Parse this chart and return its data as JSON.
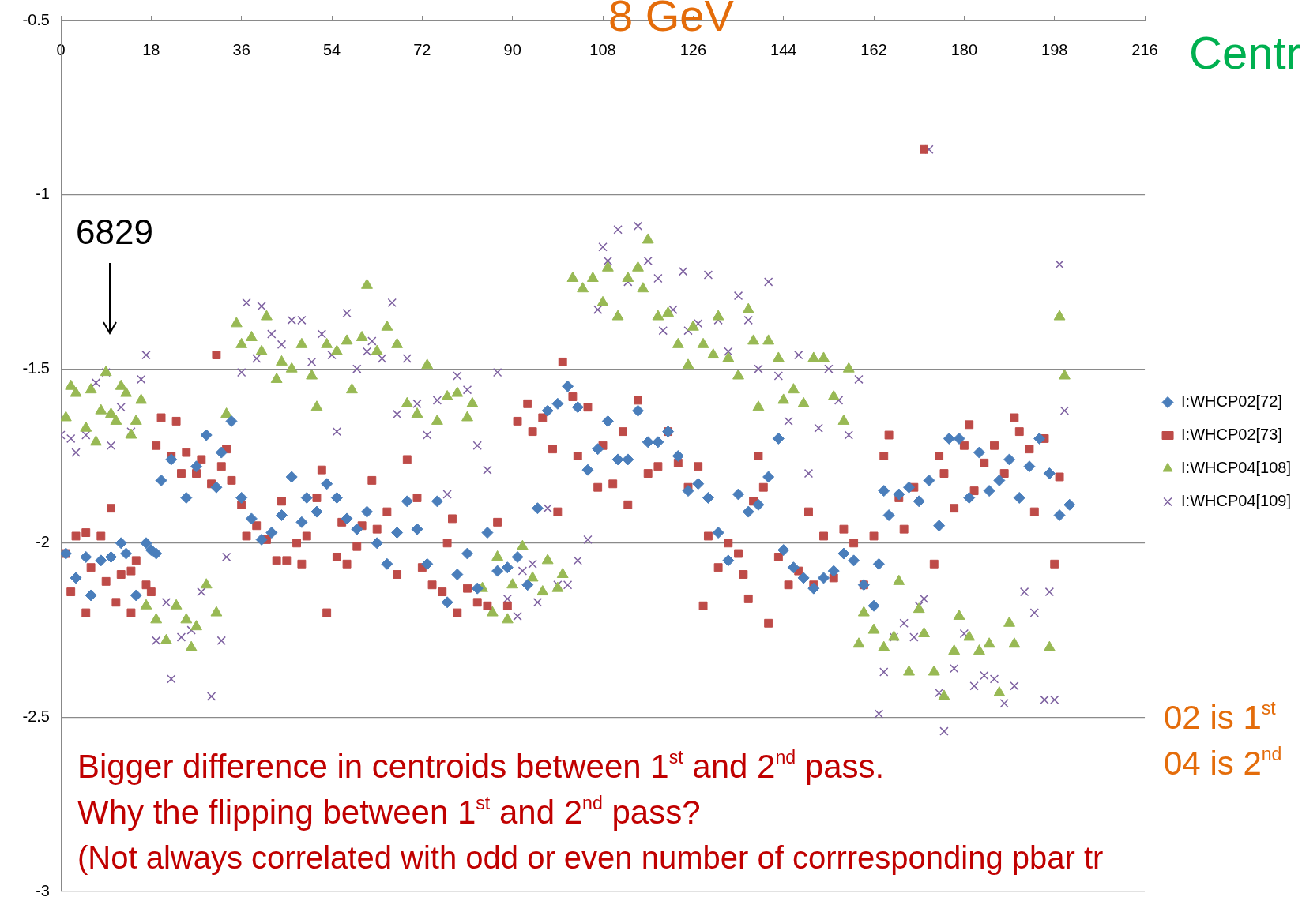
{
  "chart_data": {
    "type": "scatter",
    "title": "8 GeV",
    "annotations": [
      "Centr",
      "6829",
      "Bigger difference in centroids between 1$^{st}$ and 2$^{nd}$ pass.",
      "Why the flipping between 1$^{st}$ and 2$^{nd}$ pass?",
      "(Not always correlated with odd or even number of corrresponding pbar tr",
      "02 is 1$^{st}$",
      "04 is 2$^{nd}$"
    ],
    "xlim": [
      0,
      216
    ],
    "xticks": [
      0,
      18,
      36,
      54,
      72,
      90,
      108,
      126,
      144,
      162,
      180,
      198,
      216
    ],
    "ylim": [
      -3,
      -0.5
    ],
    "yticks": [
      -3,
      -2.5,
      -2,
      -1.5,
      -1,
      -0.5
    ],
    "grid": "y",
    "legend": "right",
    "series": [
      {
        "name": "I:WHCP02[72]",
        "color": "#4a7ebb",
        "marker": "diamond",
        "x": [
          1,
          3,
          5,
          6,
          8,
          10,
          12,
          13,
          15,
          17,
          18,
          19,
          20,
          22,
          25,
          27,
          29,
          31,
          32,
          34,
          36,
          38,
          40,
          42,
          44,
          46,
          48,
          49,
          51,
          53,
          55,
          57,
          59,
          61,
          63,
          65,
          67,
          69,
          71,
          73,
          75,
          77,
          79,
          81,
          83,
          85,
          87,
          89,
          91,
          93,
          95,
          97,
          99,
          101,
          103,
          105,
          107,
          109,
          111,
          113,
          115,
          117,
          119,
          121,
          123,
          125,
          127,
          129,
          131,
          133,
          135,
          137,
          139,
          141,
          143,
          144,
          146,
          148,
          150,
          152,
          154,
          156,
          158,
          160,
          162,
          163,
          164,
          165,
          167,
          169,
          171,
          173,
          175,
          177,
          179,
          181,
          183,
          185,
          187,
          189,
          191,
          193,
          195,
          197,
          199,
          201
        ],
        "values": [
          -2.03,
          -2.1,
          -2.04,
          -2.15,
          -2.05,
          -2.04,
          -2.0,
          -2.03,
          -2.15,
          -2.0,
          -2.02,
          -2.03,
          -1.82,
          -1.76,
          -1.87,
          -1.78,
          -1.69,
          -1.84,
          -1.74,
          -1.65,
          -1.87,
          -1.93,
          -1.99,
          -1.97,
          -1.92,
          -1.81,
          -1.94,
          -1.87,
          -1.91,
          -1.83,
          -1.87,
          -1.93,
          -1.96,
          -1.91,
          -2.0,
          -2.06,
          -1.97,
          -1.88,
          -1.96,
          -2.06,
          -1.88,
          -2.17,
          -2.09,
          -2.03,
          -2.13,
          -1.97,
          -2.08,
          -2.07,
          -2.04,
          -2.12,
          -1.9,
          -1.62,
          -1.6,
          -1.55,
          -1.61,
          -1.79,
          -1.73,
          -1.65,
          -1.76,
          -1.76,
          -1.62,
          -1.71,
          -1.71,
          -1.68,
          -1.75,
          -1.85,
          -1.83,
          -1.87,
          -1.97,
          -2.05,
          -1.86,
          -1.91,
          -1.89,
          -1.81,
          -1.7,
          -2.02,
          -2.07,
          -2.1,
          -2.13,
          -2.1,
          -2.08,
          -2.03,
          -2.05,
          -2.12,
          -2.18,
          -2.06,
          -1.85,
          -1.92,
          -1.86,
          -1.84,
          -1.88,
          -1.82,
          -1.95,
          -1.7,
          -1.7,
          -1.87,
          -1.74,
          -1.85,
          -1.82,
          -1.76,
          -1.87,
          -1.78,
          -1.7,
          -1.8,
          -1.92,
          -1.89
        ]
      },
      {
        "name": "I:WHCP02[73]",
        "color": "#be4b48",
        "marker": "square",
        "x": [
          1,
          2,
          3,
          5,
          5,
          6,
          8,
          9,
          10,
          11,
          12,
          14,
          14,
          15,
          17,
          18,
          19,
          20,
          22,
          23,
          24,
          25,
          27,
          28,
          30,
          31,
          32,
          33,
          34,
          36,
          37,
          39,
          41,
          43,
          44,
          45,
          47,
          48,
          49,
          51,
          52,
          53,
          55,
          56,
          57,
          59,
          60,
          62,
          63,
          65,
          67,
          69,
          71,
          72,
          74,
          76,
          77,
          78,
          79,
          81,
          83,
          85,
          87,
          89,
          91,
          93,
          94,
          96,
          98,
          99,
          100,
          102,
          103,
          105,
          107,
          108,
          110,
          112,
          113,
          115,
          117,
          119,
          121,
          123,
          125,
          127,
          128,
          129,
          131,
          133,
          135,
          136,
          137,
          138,
          139,
          140,
          141,
          143,
          145,
          147,
          149,
          150,
          152,
          154,
          156,
          158,
          160,
          162,
          164,
          165,
          167,
          168,
          170,
          172,
          174,
          175,
          176,
          178,
          180,
          181,
          182,
          184,
          186,
          188,
          190,
          191,
          193,
          194,
          196,
          198,
          199
        ],
        "values": [
          -2.03,
          -2.14,
          -1.98,
          -1.97,
          -2.2,
          -2.07,
          -1.98,
          -2.11,
          -1.9,
          -2.17,
          -2.09,
          -2.08,
          -2.2,
          -2.05,
          -2.12,
          -2.14,
          -1.72,
          -1.64,
          -1.75,
          -1.65,
          -1.8,
          -1.74,
          -1.8,
          -1.76,
          -1.83,
          -1.46,
          -1.78,
          -1.73,
          -1.82,
          -1.89,
          -1.98,
          -1.95,
          -1.99,
          -2.05,
          -1.88,
          -2.05,
          -2.0,
          -2.06,
          -1.98,
          -1.87,
          -1.79,
          -2.2,
          -2.04,
          -1.94,
          -2.06,
          -2.01,
          -1.95,
          -1.82,
          -1.96,
          -1.91,
          -2.09,
          -1.76,
          -1.87,
          -2.07,
          -2.12,
          -2.14,
          -2.0,
          -1.93,
          -2.2,
          -2.13,
          -2.17,
          -2.18,
          -1.94,
          -2.18,
          -1.65,
          -1.6,
          -1.68,
          -1.64,
          -1.73,
          -1.91,
          -1.48,
          -1.58,
          -1.75,
          -1.61,
          -1.84,
          -1.72,
          -1.83,
          -1.68,
          -1.89,
          -1.59,
          -1.8,
          -1.78,
          -1.68,
          -1.77,
          -1.84,
          -1.78,
          -2.18,
          -1.98,
          -2.07,
          -2.0,
          -2.03,
          -2.09,
          -2.16,
          -1.88,
          -1.75,
          -1.84,
          -2.23,
          -2.04,
          -2.12,
          -2.08,
          -1.91,
          -2.12,
          -1.98,
          -2.1,
          -1.96,
          -2.0,
          -2.12,
          -1.98,
          -1.75,
          -1.69,
          -1.87,
          -1.96,
          -1.84,
          -0.87,
          -2.06,
          -1.75,
          -1.8,
          -1.9,
          -1.72,
          -1.66,
          -1.85,
          -1.77,
          -1.72,
          -1.8,
          -1.64,
          -1.68,
          -1.73,
          -1.91,
          -1.7,
          -2.06,
          -1.81
        ]
      },
      {
        "name": "I:WHCP04[108]",
        "color": "#98b954",
        "marker": "triangle",
        "x": [
          1,
          2,
          3,
          5,
          6,
          7,
          8,
          9,
          10,
          11,
          12,
          13,
          14,
          15,
          16,
          17,
          19,
          21,
          23,
          25,
          26,
          27,
          29,
          31,
          33,
          35,
          36,
          38,
          40,
          41,
          43,
          44,
          46,
          48,
          50,
          51,
          53,
          55,
          57,
          58,
          60,
          61,
          63,
          65,
          67,
          69,
          71,
          73,
          75,
          77,
          79,
          81,
          82,
          84,
          86,
          87,
          89,
          90,
          92,
          94,
          96,
          97,
          99,
          100,
          102,
          104,
          106,
          108,
          109,
          111,
          113,
          115,
          116,
          117,
          119,
          121,
          123,
          125,
          126,
          128,
          130,
          131,
          133,
          135,
          137,
          138,
          139,
          141,
          143,
          144,
          146,
          148,
          150,
          152,
          154,
          156,
          157,
          159,
          160,
          162,
          164,
          166,
          167,
          169,
          171,
          172,
          174,
          176,
          178,
          179,
          181,
          183,
          185,
          187,
          189,
          190,
          197,
          199,
          200
        ],
        "values": [
          -1.64,
          -1.55,
          -1.57,
          -1.67,
          -1.56,
          -1.71,
          -1.62,
          -1.51,
          -1.63,
          -1.65,
          -1.55,
          -1.57,
          -1.69,
          -1.65,
          -1.59,
          -2.18,
          -2.22,
          -2.28,
          -2.18,
          -2.22,
          -2.3,
          -2.24,
          -2.12,
          -2.2,
          -1.63,
          -1.37,
          -1.43,
          -1.41,
          -1.45,
          -1.35,
          -1.53,
          -1.48,
          -1.5,
          -1.43,
          -1.52,
          -1.61,
          -1.43,
          -1.45,
          -1.42,
          -1.56,
          -1.41,
          -1.26,
          -1.45,
          -1.38,
          -1.43,
          -1.6,
          -1.63,
          -1.49,
          -1.65,
          -1.58,
          -1.57,
          -1.64,
          -1.6,
          -2.13,
          -2.2,
          -2.04,
          -2.22,
          -2.12,
          -2.01,
          -2.1,
          -2.14,
          -2.05,
          -2.13,
          -2.09,
          -1.24,
          -1.27,
          -1.24,
          -1.31,
          -1.21,
          -1.35,
          -1.24,
          -1.21,
          -1.27,
          -1.13,
          -1.35,
          -1.34,
          -1.43,
          -1.49,
          -1.38,
          -1.43,
          -1.46,
          -1.35,
          -1.47,
          -1.52,
          -1.33,
          -1.42,
          -1.61,
          -1.42,
          -1.47,
          -1.59,
          -1.56,
          -1.6,
          -1.47,
          -1.47,
          -1.58,
          -1.65,
          -1.5,
          -2.29,
          -2.2,
          -2.25,
          -2.3,
          -2.27,
          -2.11,
          -2.37,
          -2.19,
          -2.26,
          -2.37,
          -2.44,
          -2.31,
          -2.21,
          -2.27,
          -2.31,
          -2.29,
          -2.43,
          -2.23,
          -2.29,
          -2.3,
          -1.35,
          -1.52
        ]
      },
      {
        "name": "I:WHCP04[109]",
        "color": "#7d60a0",
        "marker": "cross",
        "x": [
          0,
          2,
          3,
          5,
          7,
          9,
          10,
          12,
          14,
          16,
          17,
          19,
          21,
          22,
          24,
          26,
          28,
          30,
          32,
          33,
          36,
          37,
          39,
          40,
          42,
          44,
          46,
          48,
          50,
          52,
          54,
          55,
          57,
          59,
          61,
          62,
          64,
          66,
          67,
          69,
          71,
          73,
          75,
          77,
          79,
          81,
          83,
          85,
          87,
          89,
          91,
          92,
          94,
          95,
          97,
          99,
          101,
          103,
          105,
          107,
          108,
          109,
          111,
          113,
          115,
          117,
          119,
          120,
          122,
          124,
          125,
          127,
          129,
          131,
          133,
          135,
          137,
          139,
          141,
          143,
          145,
          147,
          149,
          151,
          153,
          155,
          157,
          159,
          163,
          164,
          166,
          168,
          170,
          171,
          172,
          173,
          175,
          176,
          178,
          180,
          182,
          184,
          186,
          188,
          190,
          192,
          194,
          196,
          197,
          198,
          199,
          200
        ],
        "values": [
          -1.69,
          -1.7,
          -1.74,
          -1.69,
          -1.54,
          -1.51,
          -1.72,
          -1.61,
          -1.68,
          -1.53,
          -1.46,
          -2.28,
          -2.17,
          -2.39,
          -2.27,
          -2.25,
          -2.14,
          -2.44,
          -2.28,
          -2.04,
          -1.51,
          -1.31,
          -1.47,
          -1.32,
          -1.4,
          -1.43,
          -1.36,
          -1.36,
          -1.48,
          -1.4,
          -1.46,
          -1.68,
          -1.34,
          -1.5,
          -1.45,
          -1.42,
          -1.47,
          -1.31,
          -1.63,
          -1.47,
          -1.6,
          -1.69,
          -1.59,
          -1.86,
          -1.52,
          -1.56,
          -1.72,
          -1.79,
          -1.51,
          -2.16,
          -2.21,
          -2.08,
          -2.06,
          -2.17,
          -1.9,
          -2.12,
          -2.12,
          -2.05,
          -1.99,
          -1.33,
          -1.15,
          -1.19,
          -1.1,
          -1.25,
          -1.09,
          -1.19,
          -1.24,
          -1.39,
          -1.33,
          -1.22,
          -1.39,
          -1.37,
          -1.23,
          -1.36,
          -1.45,
          -1.29,
          -1.36,
          -1.5,
          -1.25,
          -1.52,
          -1.65,
          -1.46,
          -1.8,
          -1.67,
          -1.5,
          -1.59,
          -1.69,
          -1.53,
          -2.49,
          -2.37,
          -2.27,
          -2.23,
          -2.27,
          -2.18,
          -2.16,
          -0.87,
          -2.43,
          -2.54,
          -2.36,
          -2.26,
          -2.41,
          -2.38,
          -2.39,
          -2.46,
          -2.41,
          -2.14,
          -2.2,
          -2.45,
          -2.14,
          -2.45,
          -1.2,
          -1.62
        ]
      }
    ]
  }
}
